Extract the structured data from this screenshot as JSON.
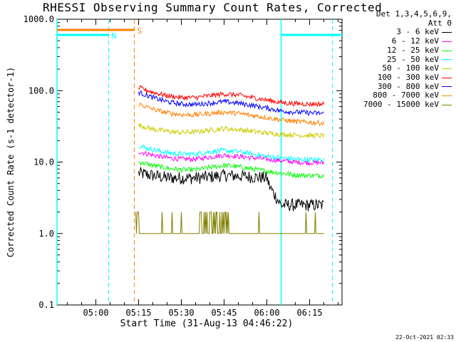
{
  "page": {
    "title": "RHESSI Observing Summary Count Rates, Corrected",
    "footer_timestamp": "22-Oct-2021 02:33"
  },
  "legend": {
    "header_line1": "Det 1,3,4,5,6,9,",
    "header_line2": "Att 0",
    "entries": [
      {
        "label": "3 - 6 keV",
        "color": "#000000"
      },
      {
        "label": "6 - 12 keV",
        "color": "#ff00ff"
      },
      {
        "label": "12 - 25 keV",
        "color": "#00ff00"
      },
      {
        "label": "25 - 50 keV",
        "color": "#00ffff"
      },
      {
        "label": "50 - 100 keV",
        "color": "#cccc00"
      },
      {
        "label": "100 - 300 keV",
        "color": "#ff0000"
      },
      {
        "label": "300 - 800 keV",
        "color": "#0000ff"
      },
      {
        "label": "800 - 7000 keV",
        "color": "#ff8000"
      },
      {
        "label": "7000 - 15000 keV",
        "color": "#808000"
      }
    ]
  },
  "chart_data": {
    "type": "line",
    "title": "RHESSI Observing Summary Count Rates, Corrected",
    "xlabel": "Start Time (31-Aug-13 04:46:22)",
    "ylabel": "Corrected Count Rate (s-1 detector-1)",
    "y_scale": "log",
    "ylim": [
      0.1,
      1000.0
    ],
    "xlim": [
      "04:46:22",
      "06:26:22"
    ],
    "x_ticks": [
      "05:00",
      "05:15",
      "05:30",
      "05:45",
      "06:00",
      "06:15"
    ],
    "y_ticks": [
      "0.1",
      "1.0",
      "10.0",
      "100.0",
      "1000.0"
    ],
    "markers": [
      {
        "label": "N",
        "type": "night",
        "color": "#00ffff",
        "intervals": [
          [
            "04:46:22",
            "05:04:30"
          ],
          [
            "06:05:00",
            "06:26:22"
          ]
        ],
        "dashed_at": [
          "05:04:30",
          "06:23:00"
        ],
        "solid_at": [
          "04:46:22",
          "06:05:00"
        ]
      },
      {
        "label": "S",
        "type": "saa",
        "color": "#ff8000",
        "intervals": [
          [
            "04:46:22",
            "05:13:30"
          ]
        ],
        "dashed_at": [
          "05:13:30"
        ]
      }
    ],
    "data_start": "05:14:00",
    "series": [
      {
        "name": "3 - 6 keV",
        "color": "#000000",
        "x": [
          "05:15",
          "05:20",
          "05:25",
          "05:30",
          "05:35",
          "05:40",
          "05:45",
          "05:50",
          "05:55",
          "06:00",
          "06:01",
          "06:05",
          "06:10",
          "06:15",
          "06:20"
        ],
        "values": [
          7.0,
          6.5,
          6.0,
          6.0,
          6.0,
          6.2,
          6.5,
          6.4,
          6.2,
          6.0,
          4.5,
          2.5,
          2.5,
          2.5,
          2.5
        ]
      },
      {
        "name": "6 - 12 keV",
        "color": "#ff00ff",
        "x": [
          "05:15",
          "05:20",
          "05:25",
          "05:30",
          "05:35",
          "05:40",
          "05:45",
          "05:50",
          "05:55",
          "06:00",
          "06:05",
          "06:10",
          "06:15",
          "06:20"
        ],
        "values": [
          14.0,
          12.5,
          11.5,
          11.0,
          11.0,
          11.8,
          12.5,
          12.0,
          11.5,
          11.0,
          10.5,
          10.0,
          9.8,
          9.8
        ]
      },
      {
        "name": "12 - 25 keV",
        "color": "#00ff00",
        "x": [
          "05:15",
          "05:20",
          "05:25",
          "05:30",
          "05:35",
          "05:40",
          "05:45",
          "05:50",
          "05:55",
          "06:00",
          "06:05",
          "06:10",
          "06:15",
          "06:20"
        ],
        "values": [
          10.0,
          9.0,
          8.2,
          7.8,
          7.8,
          8.4,
          9.0,
          8.6,
          8.0,
          7.5,
          7.0,
          6.6,
          6.5,
          6.5
        ]
      },
      {
        "name": "25 - 50 keV",
        "color": "#00ffff",
        "x": [
          "05:15",
          "05:20",
          "05:25",
          "05:30",
          "05:35",
          "05:40",
          "05:45",
          "05:50",
          "05:55",
          "06:00",
          "06:05",
          "06:10",
          "06:15",
          "06:20"
        ],
        "values": [
          17.0,
          15.0,
          13.5,
          13.0,
          13.0,
          14.0,
          14.5,
          14.0,
          13.0,
          12.0,
          11.5,
          11.0,
          10.8,
          10.8
        ]
      },
      {
        "name": "50 - 100 keV",
        "color": "#cccc00",
        "x": [
          "05:15",
          "05:20",
          "05:25",
          "05:30",
          "05:35",
          "05:40",
          "05:45",
          "05:50",
          "05:55",
          "06:00",
          "06:05",
          "06:10",
          "06:15",
          "06:20"
        ],
        "values": [
          33.0,
          29.0,
          27.0,
          26.0,
          26.5,
          28.0,
          29.5,
          28.5,
          27.0,
          25.5,
          24.5,
          24.0,
          23.5,
          23.5
        ]
      },
      {
        "name": "100 - 300 keV",
        "color": "#ff0000",
        "x": [
          "05:15",
          "05:20",
          "05:25",
          "05:30",
          "05:35",
          "05:40",
          "05:45",
          "05:50",
          "05:55",
          "06:00",
          "06:05",
          "06:10",
          "06:15",
          "06:20"
        ],
        "values": [
          110.0,
          95.0,
          85.0,
          80.0,
          80.0,
          85.0,
          90.0,
          87.0,
          80.0,
          74.0,
          68.0,
          66.0,
          65.0,
          65.0
        ]
      },
      {
        "name": "300 - 800 keV",
        "color": "#0000ff",
        "x": [
          "05:15",
          "05:20",
          "05:25",
          "05:30",
          "05:35",
          "05:40",
          "05:45",
          "05:50",
          "05:55",
          "06:00",
          "06:05",
          "06:10",
          "06:15",
          "06:20"
        ],
        "values": [
          95.0,
          80.0,
          70.0,
          65.0,
          64.0,
          67.0,
          70.0,
          67.0,
          62.0,
          57.0,
          52.0,
          50.0,
          49.0,
          48.0
        ]
      },
      {
        "name": "800 - 7000 keV",
        "color": "#ff8000",
        "x": [
          "05:15",
          "05:20",
          "05:25",
          "05:30",
          "05:35",
          "05:40",
          "05:45",
          "05:50",
          "05:55",
          "06:00",
          "06:05",
          "06:10",
          "06:15",
          "06:20"
        ],
        "values": [
          65.0,
          55.0,
          49.0,
          46.0,
          46.0,
          48.0,
          50.0,
          48.0,
          45.0,
          42.0,
          39.0,
          37.0,
          36.0,
          35.0
        ]
      },
      {
        "name": "7000 - 15000 keV",
        "color": "#808000",
        "x": [
          "05:14",
          "05:16",
          "05:20",
          "05:35",
          "05:38",
          "05:40",
          "05:42",
          "05:45",
          "05:48",
          "05:50",
          "05:55",
          "06:00",
          "06:10",
          "06:20"
        ],
        "values": [
          2.0,
          1.0,
          1.0,
          1.0,
          2.0,
          2.0,
          2.0,
          2.0,
          1.0,
          1.0,
          1.0,
          1.0,
          1.0,
          1.0
        ]
      }
    ]
  }
}
